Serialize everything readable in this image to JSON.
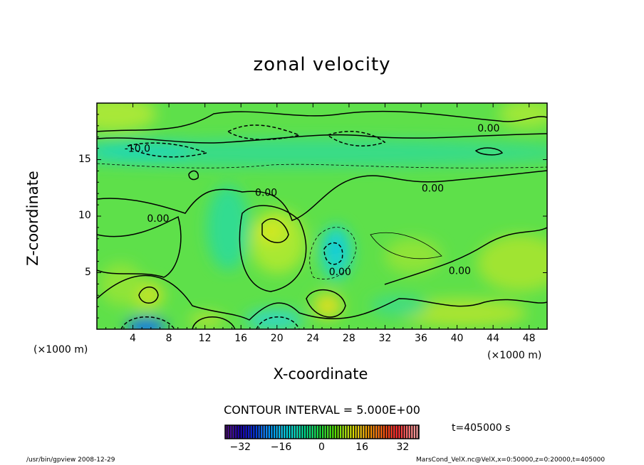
{
  "chart_data": {
    "type": "heatmap",
    "subtype": "filled contour",
    "title": "zonal velocity",
    "xlabel": "X-coordinate",
    "ylabel": "Z-coordinate",
    "x_unit": "(×1000 m)",
    "y_unit": "(×1000 m)",
    "xlim": [
      0,
      50
    ],
    "ylim": [
      0,
      20
    ],
    "xticks": [
      4,
      8,
      12,
      16,
      20,
      24,
      28,
      32,
      36,
      40,
      44,
      48
    ],
    "yticks": [
      5,
      10,
      15
    ],
    "contour_interval_label": "CONTOUR INTERVAL = 5.000E+00",
    "contour_interval": 5,
    "contour_labels": [
      {
        "text": "-10.0",
        "x": 4.5,
        "z": 16
      },
      {
        "text": "0.00",
        "x": 43.5,
        "z": 17.8
      },
      {
        "text": "0.00",
        "x": 6.8,
        "z": 9.8
      },
      {
        "text": "0.00",
        "x": 18.8,
        "z": 12.1
      },
      {
        "text": "0.00",
        "x": 37.3,
        "z": 12.5
      },
      {
        "text": "0.00",
        "x": 27,
        "z": 5.1
      },
      {
        "text": "0.00",
        "x": 40.3,
        "z": 5.2
      }
    ],
    "colorbar": {
      "range": [
        -38,
        38
      ],
      "ticks": [
        -32,
        -16,
        0,
        16,
        32
      ],
      "colormap": [
        "#4b0082",
        "#0000c8",
        "#0090ff",
        "#00e0e0",
        "#00e070",
        "#40e000",
        "#e0e000",
        "#ff8000",
        "#ff2020",
        "#ffa0a0"
      ]
    }
  },
  "time_label": "t=405000 s",
  "footer_left": "/usr/bin/gpview   2008-12-29",
  "footer_right": "MarsCond_VelX.nc@VelX,x=0:50000,z=0:20000,t=405000"
}
